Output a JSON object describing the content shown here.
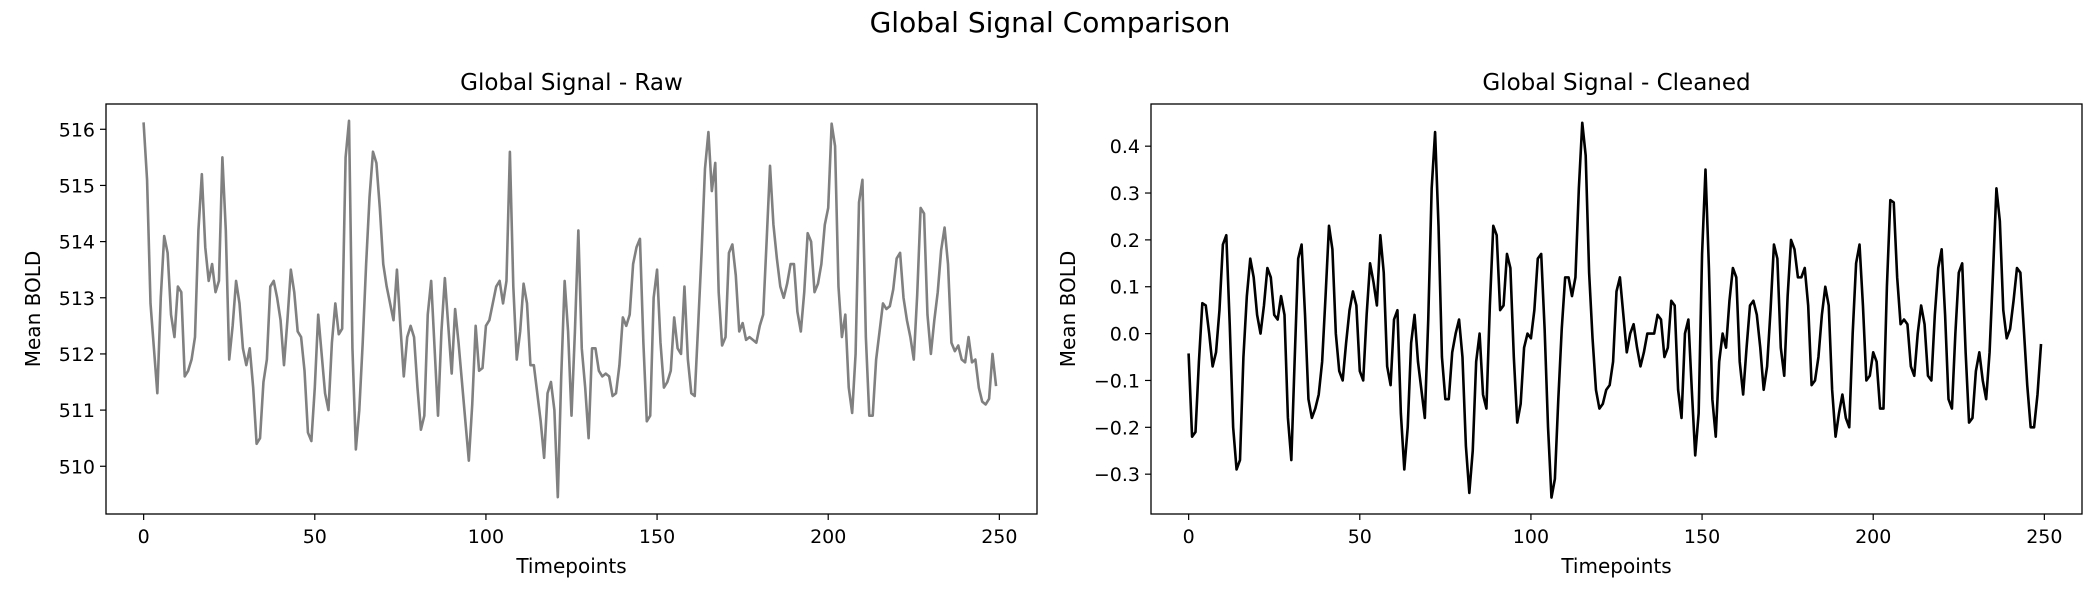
{
  "figure": {
    "suptitle": "Global Signal Comparison"
  },
  "chart_data": [
    {
      "type": "line",
      "title": "Global Signal - Raw",
      "xlabel": "Timepoints",
      "ylabel": "Mean BOLD",
      "xlim": [
        -11,
        261
      ],
      "ylim": [
        509.15,
        516.45
      ],
      "xticks": [
        0,
        50,
        100,
        150,
        200,
        250
      ],
      "yticks": [
        510,
        511,
        512,
        513,
        514,
        515,
        516
      ],
      "grid": false,
      "series": [
        {
          "color": "#808080",
          "values": [
            516.1,
            515.1,
            512.9,
            512.1,
            511.3,
            513.0,
            514.1,
            513.8,
            512.7,
            512.3,
            513.2,
            513.1,
            511.6,
            511.7,
            511.9,
            512.3,
            514.2,
            515.2,
            513.9,
            513.3,
            513.6,
            513.1,
            513.3,
            515.5,
            514.2,
            511.9,
            512.5,
            513.3,
            512.9,
            512.1,
            511.8,
            512.1,
            511.4,
            510.4,
            510.5,
            511.5,
            511.9,
            513.2,
            513.3,
            513.0,
            512.6,
            511.8,
            512.6,
            513.5,
            513.1,
            512.4,
            512.3,
            511.7,
            510.6,
            510.45,
            511.4,
            512.7,
            512.0,
            511.3,
            511.0,
            512.2,
            512.9,
            512.35,
            512.45,
            515.5,
            516.15,
            512.1,
            510.3,
            511.0,
            512.2,
            513.6,
            514.8,
            515.6,
            515.4,
            514.6,
            513.6,
            513.2,
            512.9,
            512.6,
            513.5,
            512.5,
            511.6,
            512.3,
            512.5,
            512.3,
            511.4,
            510.65,
            510.9,
            512.7,
            513.3,
            512.1,
            510.9,
            512.4,
            513.35,
            512.5,
            511.65,
            512.8,
            512.2,
            511.5,
            510.8,
            510.1,
            511.1,
            512.5,
            511.7,
            511.75,
            512.5,
            512.6,
            512.9,
            513.2,
            513.3,
            512.9,
            513.3,
            515.6,
            513.2,
            511.9,
            512.4,
            513.25,
            512.9,
            511.8,
            511.8,
            511.3,
            510.8,
            510.15,
            511.3,
            511.5,
            511.0,
            509.45,
            511.6,
            513.3,
            512.4,
            510.9,
            512.4,
            514.2,
            512.1,
            511.4,
            510.5,
            512.1,
            512.1,
            511.7,
            511.6,
            511.65,
            511.6,
            511.25,
            511.3,
            511.8,
            512.65,
            512.5,
            512.7,
            513.6,
            513.9,
            514.05,
            512.2,
            510.8,
            510.9,
            513.0,
            513.5,
            512.2,
            511.4,
            511.5,
            511.7,
            512.65,
            512.1,
            512.0,
            513.2,
            511.9,
            511.3,
            511.25,
            512.5,
            513.8,
            515.3,
            515.95,
            514.9,
            515.4,
            513.1,
            512.15,
            512.3,
            513.8,
            513.95,
            513.4,
            512.4,
            512.55,
            512.25,
            512.3,
            512.25,
            512.2,
            512.5,
            512.7,
            514.0,
            515.35,
            514.3,
            513.7,
            513.2,
            513.0,
            513.25,
            513.6,
            513.6,
            512.75,
            512.4,
            513.1,
            514.15,
            514.0,
            513.1,
            513.25,
            513.6,
            514.3,
            514.6,
            516.1,
            515.7,
            513.2,
            512.3,
            512.7,
            511.4,
            510.95,
            512.0,
            514.7,
            515.1,
            512.3,
            510.9,
            510.9,
            511.9,
            512.4,
            512.9,
            512.8,
            512.85,
            513.15,
            513.7,
            513.8,
            513.0,
            512.6,
            512.3,
            511.9,
            513.05,
            514.6,
            514.5,
            512.7,
            512.0,
            512.6,
            513.1,
            513.85,
            514.25,
            513.6,
            512.2,
            512.05,
            512.15,
            511.9,
            511.85,
            512.3,
            511.85,
            511.9,
            511.4,
            511.15,
            511.1,
            511.2,
            512.0,
            511.45
          ]
        }
      ]
    },
    {
      "type": "line",
      "title": "Global Signal - Cleaned",
      "xlabel": "Timepoints",
      "ylabel": "Mean BOLD",
      "xlim": [
        -11,
        261
      ],
      "ylim": [
        -0.385,
        0.49
      ],
      "xticks": [
        0,
        50,
        100,
        150,
        200,
        250
      ],
      "yticks": [
        -0.3,
        -0.2,
        -0.1,
        0.0,
        0.1,
        0.2,
        0.3,
        0.4
      ],
      "ytick_labels": [
        "−0.3",
        "−0.2",
        "−0.1",
        "0.0",
        "0.1",
        "0.2",
        "0.3",
        "0.4"
      ],
      "grid": false,
      "series": [
        {
          "color": "#000000",
          "values": [
            -0.045,
            -0.22,
            -0.21,
            -0.06,
            0.065,
            0.06,
            0.0,
            -0.07,
            -0.04,
            0.05,
            0.19,
            0.21,
            0.02,
            -0.2,
            -0.29,
            -0.27,
            -0.05,
            0.08,
            0.16,
            0.12,
            0.04,
            0.0,
            0.06,
            0.14,
            0.12,
            0.04,
            0.03,
            0.08,
            0.04,
            -0.18,
            -0.27,
            -0.05,
            0.16,
            0.19,
            0.04,
            -0.14,
            -0.18,
            -0.16,
            -0.13,
            -0.06,
            0.08,
            0.23,
            0.18,
            0.0,
            -0.08,
            -0.1,
            -0.02,
            0.05,
            0.09,
            0.06,
            -0.08,
            -0.1,
            0.04,
            0.15,
            0.11,
            0.06,
            0.21,
            0.13,
            -0.07,
            -0.11,
            0.03,
            0.05,
            -0.17,
            -0.29,
            -0.2,
            -0.02,
            0.04,
            -0.06,
            -0.12,
            -0.18,
            0.03,
            0.31,
            0.43,
            0.23,
            -0.05,
            -0.14,
            -0.14,
            -0.04,
            0.0,
            0.03,
            -0.05,
            -0.24,
            -0.34,
            -0.25,
            -0.06,
            0.0,
            -0.13,
            -0.16,
            0.06,
            0.23,
            0.21,
            0.05,
            0.06,
            0.17,
            0.14,
            -0.05,
            -0.19,
            -0.15,
            -0.03,
            0.0,
            -0.01,
            0.05,
            0.16,
            0.17,
            0.01,
            -0.2,
            -0.35,
            -0.31,
            -0.14,
            0.01,
            0.12,
            0.12,
            0.08,
            0.12,
            0.31,
            0.45,
            0.38,
            0.13,
            -0.01,
            -0.12,
            -0.16,
            -0.15,
            -0.12,
            -0.11,
            -0.06,
            0.09,
            0.12,
            0.04,
            -0.04,
            0.0,
            0.02,
            -0.03,
            -0.07,
            -0.04,
            0.0,
            0.0,
            0.0,
            0.04,
            0.03,
            -0.05,
            -0.03,
            0.07,
            0.06,
            -0.12,
            -0.18,
            0.0,
            0.03,
            -0.12,
            -0.26,
            -0.17,
            0.17,
            0.35,
            0.14,
            -0.14,
            -0.22,
            -0.06,
            0.0,
            -0.03,
            0.07,
            0.14,
            0.12,
            -0.06,
            -0.13,
            -0.03,
            0.06,
            0.07,
            0.04,
            -0.03,
            -0.12,
            -0.07,
            0.05,
            0.19,
            0.16,
            -0.03,
            -0.09,
            0.08,
            0.2,
            0.18,
            0.12,
            0.12,
            0.14,
            0.06,
            -0.11,
            -0.1,
            -0.05,
            0.04,
            0.1,
            0.06,
            -0.12,
            -0.22,
            -0.17,
            -0.13,
            -0.18,
            -0.2,
            0.0,
            0.15,
            0.19,
            0.06,
            -0.1,
            -0.09,
            -0.04,
            -0.06,
            -0.16,
            -0.16,
            0.1,
            0.285,
            0.28,
            0.12,
            0.02,
            0.03,
            0.02,
            -0.07,
            -0.09,
            0.0,
            0.06,
            0.02,
            -0.09,
            -0.1,
            0.04,
            0.14,
            0.18,
            0.04,
            -0.14,
            -0.16,
            0.0,
            0.13,
            0.15,
            -0.04,
            -0.19,
            -0.18,
            -0.08,
            -0.04,
            -0.1,
            -0.14,
            -0.04,
            0.13,
            0.31,
            0.24,
            0.05,
            -0.01,
            0.01,
            0.07,
            0.14,
            0.13,
            0.01,
            -0.11,
            -0.2,
            -0.2,
            -0.13,
            -0.025
          ]
        }
      ]
    }
  ]
}
